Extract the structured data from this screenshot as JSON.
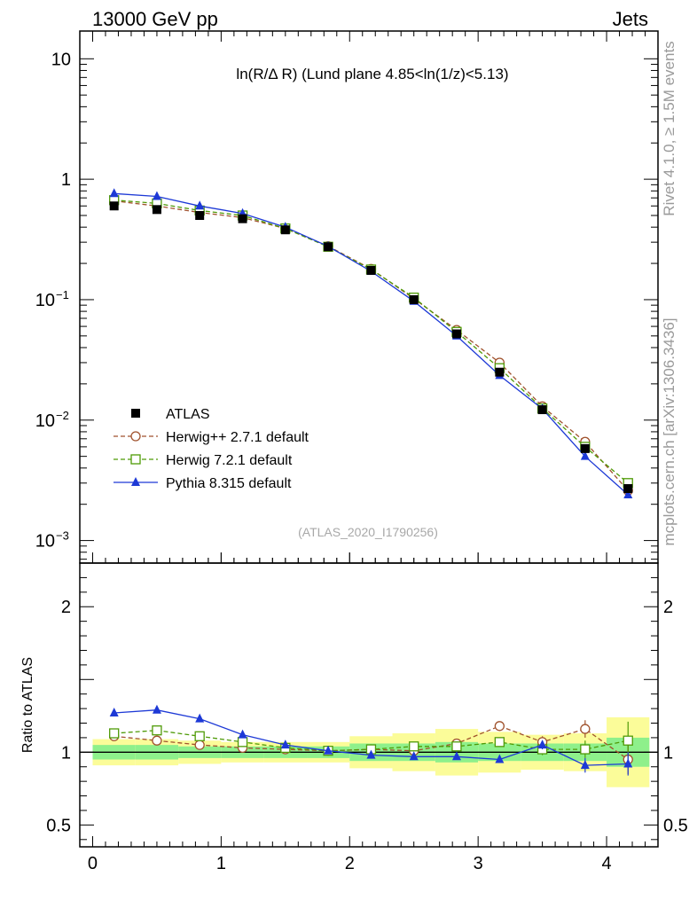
{
  "header": {
    "left": "13000 GeV pp",
    "right": "Jets"
  },
  "side_text": {
    "rivet": "Rivet 4.1.0, ≥ 1.5M events",
    "mcplots": "mcplots.cern.ch [arXiv:1306.3436]"
  },
  "chart_data": {
    "type": "line",
    "title": "ln(R/Δ R) (Lund plane 4.85<ln(1/z)<5.13)",
    "analysis_id": "(ATLAS_2020_I1790256)",
    "xlabel": "",
    "xlim": [
      -0.1,
      4.4
    ],
    "x_ticks": [
      0,
      1,
      2,
      3,
      4
    ],
    "main_ylabel": "",
    "main_yscale": "log",
    "main_ylim": [
      0.00065,
      17
    ],
    "main_y_tick_labels": [
      {
        "value": 10,
        "label": "10",
        "sup": ""
      },
      {
        "value": 1,
        "label": "1",
        "sup": ""
      },
      {
        "value": 0.1,
        "label": "10",
        "sup": "−1"
      },
      {
        "value": 0.01,
        "label": "10",
        "sup": "−2"
      },
      {
        "value": 0.001,
        "label": "10",
        "sup": "−3"
      }
    ],
    "ratio_ylabel": "Ratio to ATLAS",
    "ratio_ylim": [
      0.35,
      2.3
    ],
    "ratio_y_ticks": [
      {
        "value": 2,
        "label": "2"
      },
      {
        "value": 1,
        "label": "1"
      },
      {
        "value": 0.5,
        "label": "0.5"
      }
    ],
    "x": [
      0.167,
      0.5,
      0.833,
      1.167,
      1.5,
      1.833,
      2.167,
      2.5,
      2.833,
      3.167,
      3.5,
      3.833,
      4.167
    ],
    "bin_edges": [
      0,
      0.333,
      0.667,
      1.0,
      1.333,
      1.667,
      2.0,
      2.333,
      2.667,
      3.0,
      3.333,
      3.667,
      4.0,
      4.333
    ],
    "band_inner": [
      0.05,
      0.05,
      0.04,
      0.04,
      0.04,
      0.04,
      0.06,
      0.06,
      0.07,
      0.06,
      0.06,
      0.06,
      0.1
    ],
    "band_outer": [
      0.09,
      0.09,
      0.08,
      0.07,
      0.07,
      0.07,
      0.11,
      0.13,
      0.16,
      0.14,
      0.12,
      0.13,
      0.24
    ],
    "legend": [
      {
        "name": "ATLAS",
        "color": "#000000",
        "marker": "square-filled",
        "dash": ""
      },
      {
        "name": "Herwig++ 2.7.1 default",
        "color": "#a0522d",
        "marker": "circle-open",
        "dash": "5,3"
      },
      {
        "name": "Herwig 7.2.1 default",
        "color": "#4e9a06",
        "marker": "square-open",
        "dash": "5,3"
      },
      {
        "name": "Pythia 8.315 default",
        "color": "#1d39d6",
        "marker": "triangle-filled",
        "dash": ""
      }
    ],
    "series": [
      {
        "name": "ATLAS",
        "values": [
          0.6,
          0.56,
          0.5,
          0.47,
          0.38,
          0.275,
          0.175,
          0.1,
          0.052,
          0.025,
          0.0122,
          0.0058,
          0.0027
        ],
        "ratio": null
      },
      {
        "name": "Herwig++ 2.7.1 default",
        "values": [
          0.66,
          0.6,
          0.53,
          0.48,
          0.39,
          0.278,
          0.18,
          0.102,
          0.056,
          0.03,
          0.013,
          0.0066,
          0.0026
        ],
        "ratio": [
          1.11,
          1.08,
          1.05,
          1.03,
          1.02,
          1.01,
          1.02,
          1.01,
          1.06,
          1.18,
          1.07,
          1.16,
          0.95
        ],
        "ratio_err": [
          0,
          0,
          0,
          0,
          0,
          0,
          0,
          0,
          0,
          0.03,
          0.04,
          0.06,
          0.1
        ]
      },
      {
        "name": "Herwig 7.2.1 default",
        "values": [
          0.67,
          0.63,
          0.55,
          0.5,
          0.39,
          0.275,
          0.178,
          0.104,
          0.054,
          0.027,
          0.0125,
          0.006,
          0.003
        ],
        "ratio": [
          1.13,
          1.15,
          1.11,
          1.07,
          1.03,
          1.01,
          1.02,
          1.04,
          1.04,
          1.07,
          1.02,
          1.02,
          1.08
        ],
        "ratio_err": [
          0,
          0,
          0,
          0,
          0,
          0,
          0,
          0,
          0,
          0.03,
          0.04,
          0.06,
          0.13
        ]
      },
      {
        "name": "Pythia 8.315 default",
        "values": [
          0.76,
          0.72,
          0.6,
          0.52,
          0.4,
          0.277,
          0.172,
          0.097,
          0.05,
          0.0235,
          0.0124,
          0.005,
          0.0024
        ],
        "ratio": [
          1.27,
          1.29,
          1.23,
          1.12,
          1.05,
          1.01,
          0.98,
          0.97,
          0.97,
          0.95,
          1.05,
          0.91,
          0.92
        ],
        "ratio_err": [
          0,
          0,
          0,
          0,
          0,
          0,
          0,
          0,
          0,
          0.02,
          0.03,
          0.05,
          0.08
        ]
      }
    ]
  }
}
